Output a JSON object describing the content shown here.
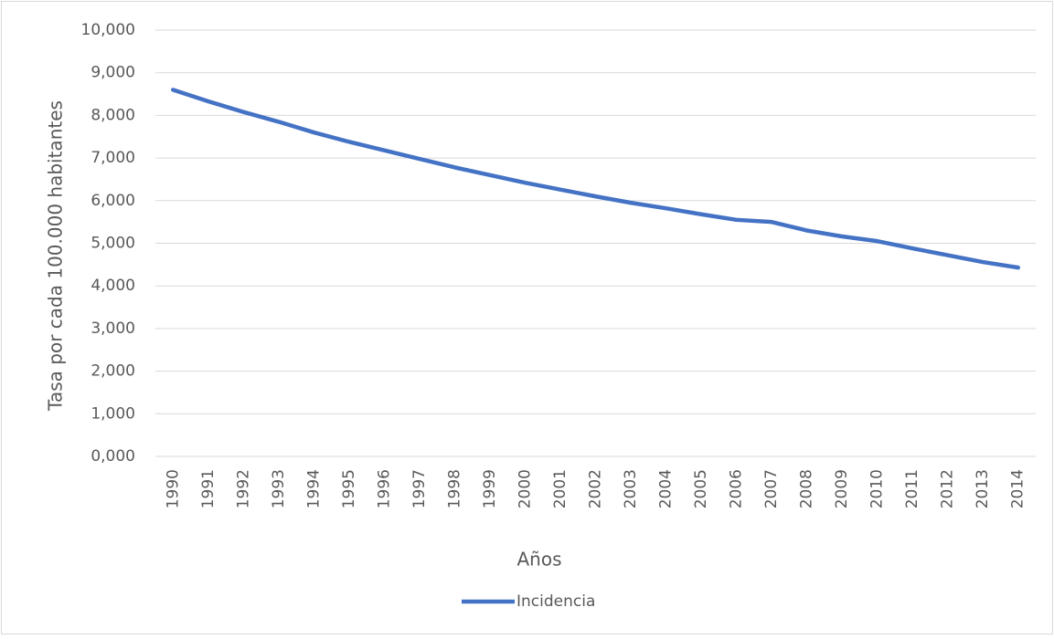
{
  "chart_data": {
    "type": "line",
    "x_label": "Años",
    "y_label": "Tasa por cada 100.000 habitantes",
    "categories": [
      "1990",
      "1991",
      "1992",
      "1993",
      "1994",
      "1995",
      "1996",
      "1997",
      "1998",
      "1999",
      "2000",
      "2001",
      "2002",
      "2003",
      "2004",
      "2005",
      "2006",
      "2007",
      "2008",
      "2009",
      "2010",
      "2011",
      "2012",
      "2013",
      "2014"
    ],
    "series": [
      {
        "name": "Incidencia",
        "color": "#4472c4",
        "values": [
          8600,
          8330,
          8080,
          7850,
          7600,
          7380,
          7180,
          6980,
          6780,
          6600,
          6420,
          6260,
          6100,
          5950,
          5820,
          5680,
          5550,
          5500,
          5300,
          5160,
          5050,
          4880,
          4720,
          4560,
          4430
        ]
      }
    ],
    "ylim": [
      0,
      10000
    ],
    "yticks": [
      {
        "value": 0,
        "label": "0,000"
      },
      {
        "value": 1000,
        "label": "1,000"
      },
      {
        "value": 2000,
        "label": "2,000"
      },
      {
        "value": 3000,
        "label": "3,000"
      },
      {
        "value": 4000,
        "label": "4,000"
      },
      {
        "value": 5000,
        "label": "5,000"
      },
      {
        "value": 6000,
        "label": "6,000"
      },
      {
        "value": 7000,
        "label": "7,000"
      },
      {
        "value": 8000,
        "label": "8,000"
      },
      {
        "value": 9000,
        "label": "9,000"
      },
      {
        "value": 10000,
        "label": "10,000"
      }
    ],
    "grid": true,
    "legend": "bottom"
  }
}
